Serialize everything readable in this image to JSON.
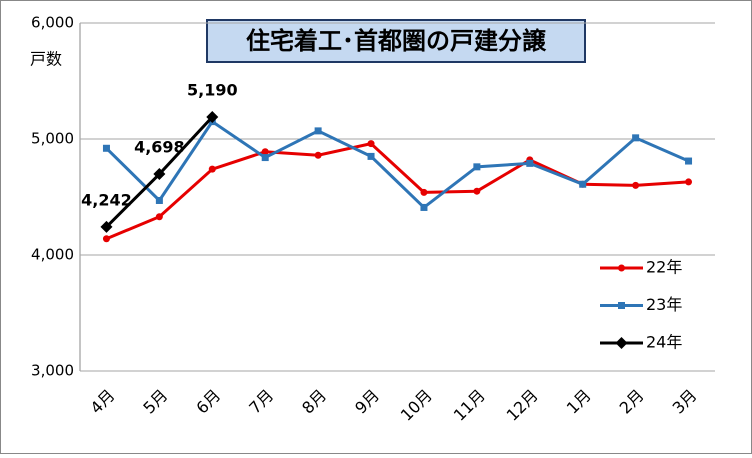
{
  "chart_data": {
    "type": "line",
    "title": "住宅着工･首都圏の戸建分譲",
    "y_label": "戸数",
    "categories": [
      "4月",
      "5月",
      "6月",
      "7月",
      "8月",
      "9月",
      "10月",
      "11月",
      "12月",
      "1月",
      "2月",
      "3月"
    ],
    "series": [
      {
        "name": "22年",
        "color": "#e60000",
        "marker": "circle",
        "values": [
          4140,
          4330,
          4740,
          4890,
          4860,
          4960,
          4540,
          4550,
          4820,
          4610,
          4600,
          4630
        ]
      },
      {
        "name": "23年",
        "color": "#2e75b6",
        "marker": "square",
        "values": [
          4920,
          4470,
          5150,
          4840,
          5070,
          4850,
          4410,
          4760,
          4790,
          4610,
          5010,
          4810
        ]
      },
      {
        "name": "24年",
        "color": "#000000",
        "marker": "diamond",
        "values": [
          4242,
          4698,
          5190,
          null,
          null,
          null,
          null,
          null,
          null,
          null,
          null,
          null
        ],
        "value_labels": [
          "4,242",
          "4,698",
          "5,190",
          null,
          null,
          null,
          null,
          null,
          null,
          null,
          null,
          null
        ]
      }
    ],
    "ylim": [
      3000,
      6000
    ],
    "yticks": [
      {
        "value": 3000,
        "label": "3,000"
      },
      {
        "value": 4000,
        "label": "4,000"
      },
      {
        "value": 5000,
        "label": "5,000"
      },
      {
        "value": 6000,
        "label": "6,000"
      }
    ],
    "grid": true,
    "legend": "lower-right"
  }
}
